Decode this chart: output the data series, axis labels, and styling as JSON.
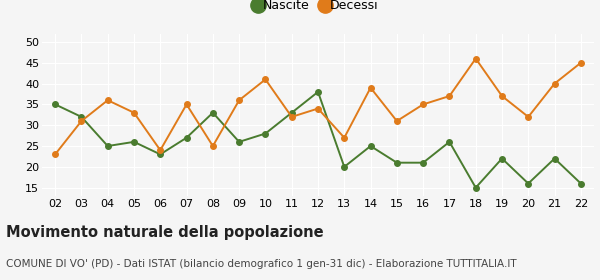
{
  "years": [
    "02",
    "03",
    "04",
    "05",
    "06",
    "07",
    "08",
    "09",
    "10",
    "11",
    "12",
    "13",
    "14",
    "15",
    "16",
    "17",
    "18",
    "19",
    "20",
    "21",
    "22"
  ],
  "nascite": [
    35,
    32,
    25,
    26,
    23,
    27,
    33,
    26,
    28,
    33,
    38,
    20,
    25,
    21,
    21,
    26,
    15,
    22,
    16,
    22,
    16
  ],
  "decessi": [
    23,
    31,
    36,
    33,
    24,
    35,
    25,
    36,
    41,
    32,
    34,
    27,
    39,
    31,
    35,
    37,
    46,
    37,
    32,
    40,
    45
  ],
  "nascite_color": "#4a7c2f",
  "decessi_color": "#e07b1a",
  "background_color": "#f5f5f5",
  "grid_color": "#ffffff",
  "title": "Movimento naturale della popolazione",
  "subtitle": "COMUNE DI VO' (PD) - Dati ISTAT (bilancio demografico 1 gen-31 dic) - Elaborazione TUTTITALIA.IT",
  "legend_nascite": "Nascite",
  "legend_decessi": "Decessi",
  "ylim": [
    13,
    52
  ],
  "yticks": [
    15,
    20,
    25,
    30,
    35,
    40,
    45,
    50
  ],
  "title_fontsize": 10.5,
  "subtitle_fontsize": 7.5,
  "tick_fontsize": 8,
  "legend_fontsize": 9
}
